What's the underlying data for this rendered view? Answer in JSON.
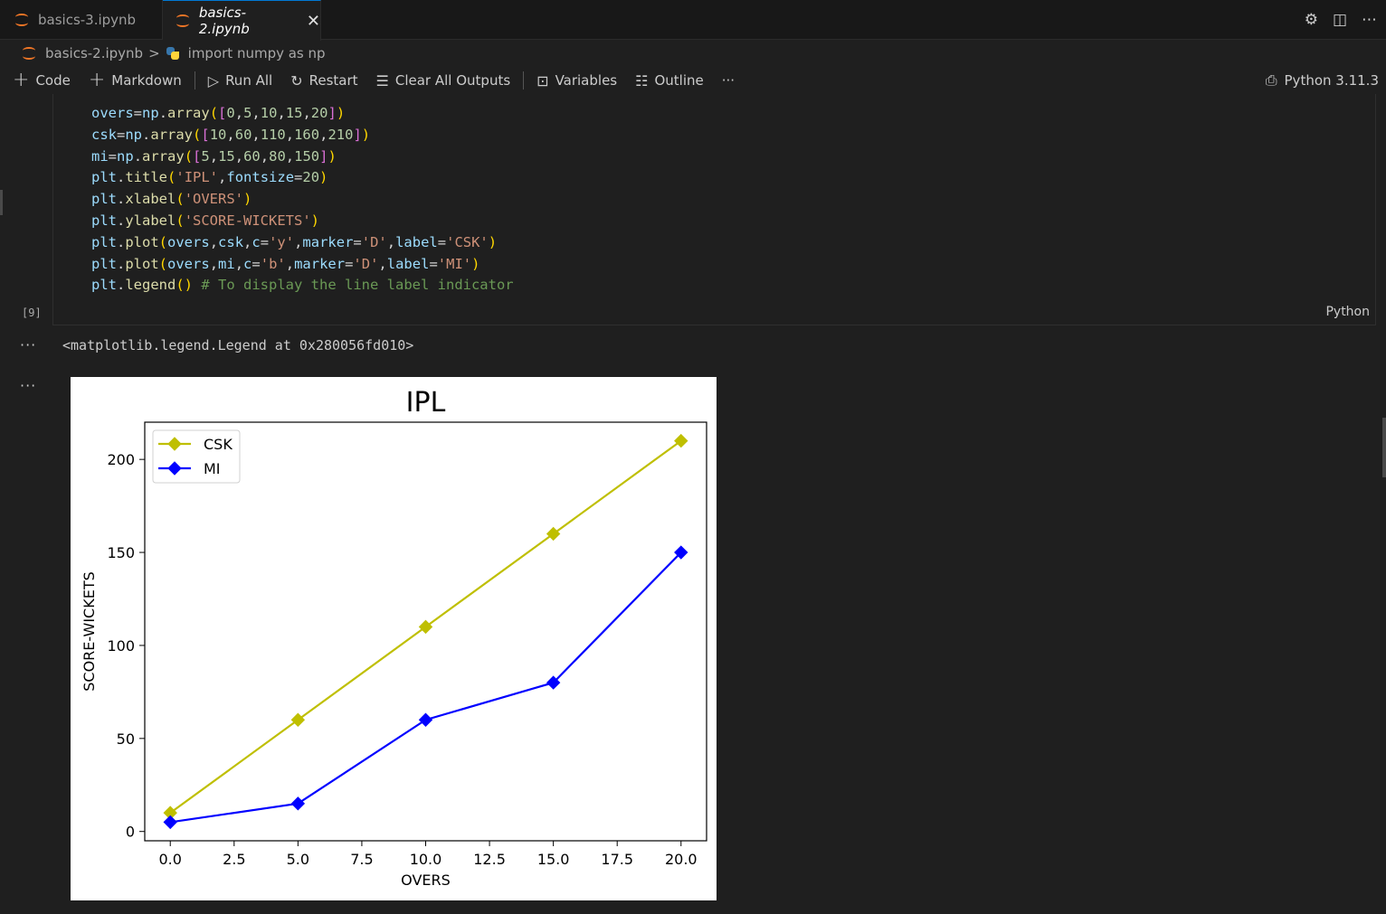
{
  "tabs": [
    {
      "label": "basics-3.ipynb",
      "active": false
    },
    {
      "label": "basics-2.ipynb",
      "active": true
    }
  ],
  "breadcrumb": {
    "file": "basics-2.ipynb",
    "symbol": "import numpy as np"
  },
  "toolbar": {
    "code": "Code",
    "markdown": "Markdown",
    "run_all": "Run All",
    "restart": "Restart",
    "clear_outputs": "Clear All Outputs",
    "variables": "Variables",
    "outline": "Outline",
    "more": "···",
    "kernel": "Python 3.11.3"
  },
  "cell": {
    "exec_count": "[9]",
    "language": "Python",
    "comment": "# To display the line label indicator"
  },
  "output": {
    "more": "···",
    "text": "<matplotlib.legend.Legend at 0x280056fd010>"
  },
  "colors": {
    "accent": "#0078d4",
    "csk": "#bfbf00",
    "mi": "#0000ff"
  },
  "chart_data": {
    "type": "line",
    "title": "IPL",
    "xlabel": "OVERS",
    "ylabel": "SCORE-WICKETS",
    "x": [
      0,
      5,
      10,
      15,
      20
    ],
    "series": [
      {
        "name": "CSK",
        "values": [
          10,
          60,
          110,
          160,
          210
        ],
        "color": "#bfbf00",
        "marker": "D"
      },
      {
        "name": "MI",
        "values": [
          5,
          15,
          60,
          80,
          150
        ],
        "color": "#0000ff",
        "marker": "D"
      }
    ],
    "xlim": [
      -1,
      21
    ],
    "ylim": [
      -5,
      220
    ],
    "xticks": [
      "0.0",
      "2.5",
      "5.0",
      "7.5",
      "10.0",
      "12.5",
      "15.0",
      "17.5",
      "20.0"
    ],
    "yticks": [
      "0",
      "50",
      "100",
      "150",
      "200"
    ],
    "legend": "upper-left",
    "grid": false
  }
}
